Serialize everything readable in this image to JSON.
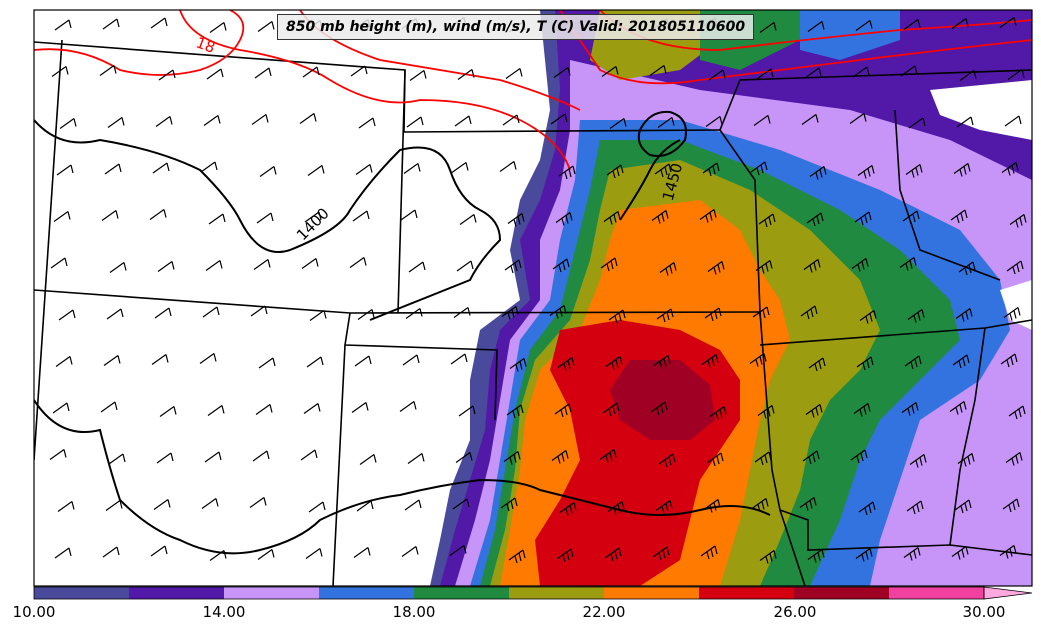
{
  "title": "850 mb height (m), wind (m/s), T (C) Valid: 201805110600",
  "contour_labels": {
    "height_a": "1400",
    "height_b": "1450",
    "temp_a": "18"
  },
  "colorbar": {
    "ticks": [
      "10.00",
      "14.00",
      "18.00",
      "22.00",
      "26.00",
      "30.00"
    ],
    "colors": [
      "#4a4a9c",
      "#5218a8",
      "#c794f8",
      "#3273e0",
      "#1f8a40",
      "#9c9c10",
      "#ff7a00",
      "#d40010",
      "#a00024",
      "#f040a0",
      "#ffa8e0"
    ]
  },
  "map_colors": {
    "ocean_none": "#ffffff",
    "border": "#000000",
    "temp_contour": "#ff0000",
    "height_contour": "#000000"
  }
}
